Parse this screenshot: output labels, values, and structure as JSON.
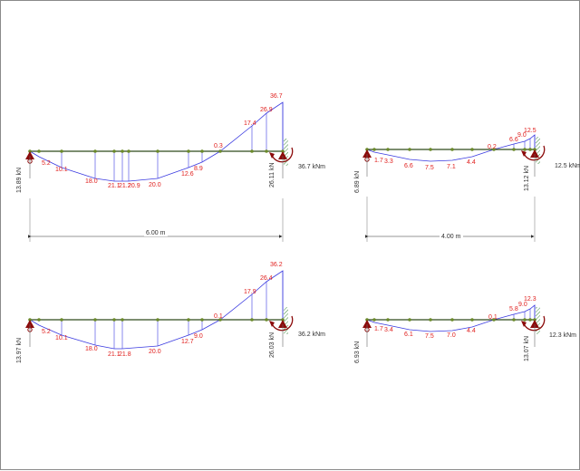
{
  "colors": {
    "beam": "#2f4a1a",
    "node": "#6b8a2a",
    "diagram": "#3a3ae0",
    "values": "#e0201e",
    "support": "#8b0a0a",
    "hatch": "#3a8a3a",
    "text": "#303030"
  },
  "diagrams": [
    {
      "id": "top-left",
      "length_label": "6.00 m",
      "reaction_left": "13.89 kN",
      "reaction_right": "26.11 kN",
      "moment_label": "36.7 kNm",
      "values": [
        "5.2",
        "10.1",
        "18.0",
        "21.1",
        "21.2",
        "20.9",
        "20.0",
        "12.6",
        "8.9",
        "0.3",
        "17.4",
        "26.9",
        "36.7"
      ]
    },
    {
      "id": "top-right",
      "length_label": "4.00 m",
      "reaction_left": "6.89 kN",
      "reaction_right": "13.12 kN",
      "moment_label": "12.5 kNm",
      "values": [
        "1.7",
        "3.3",
        "6.6",
        "7.5",
        "7.1",
        "4.4",
        "0.2",
        "6.6",
        "9.0",
        "12.5"
      ]
    },
    {
      "id": "bottom-left",
      "length_label": "",
      "reaction_left": "13.97 kN",
      "reaction_right": "26.03 kN",
      "moment_label": "36.2 kNm",
      "values": [
        "5.2",
        "10.1",
        "18.0",
        "21.1",
        "21.8",
        "20.0",
        "12.7",
        "9.0",
        "0.1",
        "17.9",
        "26.4",
        "36.2"
      ]
    },
    {
      "id": "bottom-right",
      "length_label": "",
      "reaction_left": "6.93 kN",
      "reaction_right": "13.07 kN",
      "moment_label": "12.3 kNm",
      "values": [
        "1.7",
        "3.4",
        "6.1",
        "7.5",
        "7.0",
        "4.4",
        "0.1",
        "5.8",
        "9.0",
        "12.3"
      ]
    }
  ]
}
